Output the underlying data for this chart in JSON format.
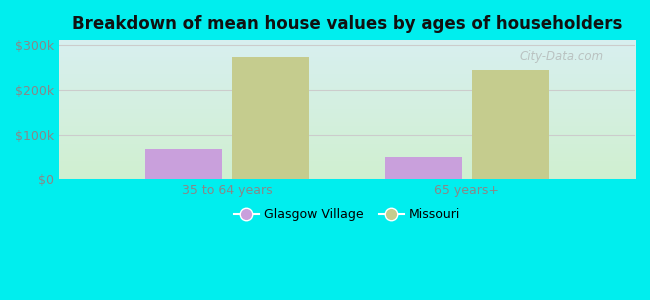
{
  "title": "Breakdown of mean house values by ages of householders",
  "categories": [
    "35 to 64 years",
    "65 years+"
  ],
  "glasgow_village": [
    67000,
    50000
  ],
  "missouri": [
    272000,
    243000
  ],
  "glasgow_color": "#c9a0dc",
  "missouri_color": "#c5cc8e",
  "ylim": [
    0,
    310000
  ],
  "ytick_labels": [
    "$0",
    "$100k",
    "$200k",
    "$300k"
  ],
  "ytick_values": [
    0,
    100000,
    200000,
    300000
  ],
  "background_outer": "#00eeee",
  "background_top": "#d8eff0",
  "background_bottom": "#d0f0d0",
  "legend_labels": [
    "Glasgow Village",
    "Missouri"
  ],
  "bar_width": 0.32,
  "watermark": "City-Data.com",
  "tick_color": "#888888",
  "grid_color": "#cccccc",
  "title_color": "#111111"
}
